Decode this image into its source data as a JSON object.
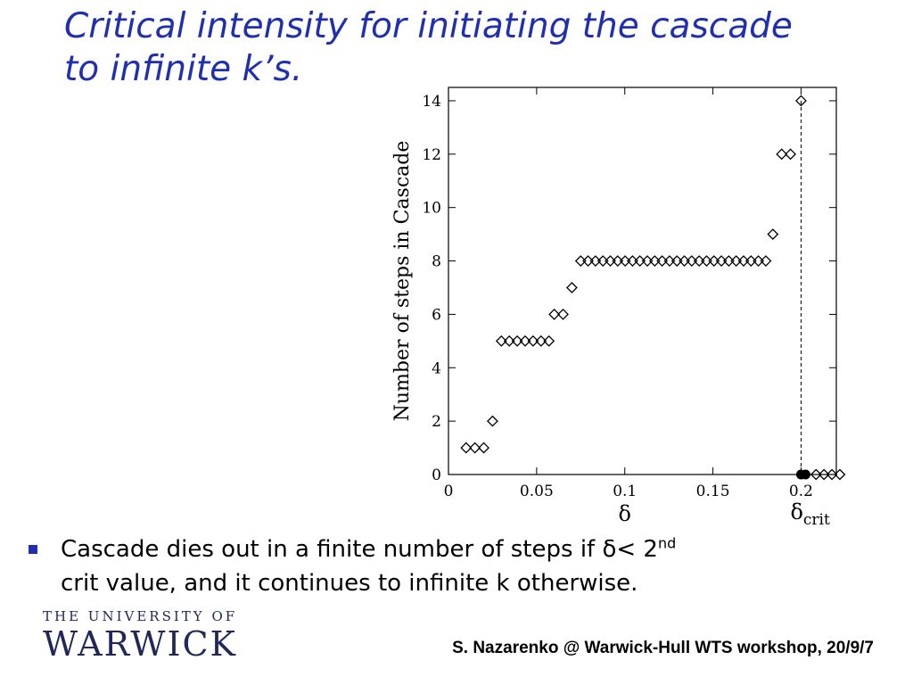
{
  "slide": {
    "title_line1": "Critical intensity for initiating the cascade",
    "title_line2": "to infinite k’s.",
    "bullet_main": "Cascade dies out in a finite number of steps if δ< 2",
    "bullet_sup": "nd",
    "bullet_line2": "crit value, and it continues to infinite k otherwise.",
    "logo_top": "THE UNIVERSITY OF",
    "logo_main": "WARWICK",
    "footer": "S. Nazarenko @ Warwick-Hull WTS workshop, 20/9/7"
  },
  "colors": {
    "title": "#1f2fb0",
    "bullet": "#1f2fb0",
    "logo": "#20285a",
    "axes": "#000000"
  },
  "chart_data": {
    "type": "scatter",
    "xlabel": "δ",
    "ylabel": "Number of steps in Cascade",
    "xlim": [
      0,
      0.22
    ],
    "ylim": [
      0,
      14.5
    ],
    "xticks": [
      0,
      0.05,
      0.1,
      0.15,
      0.2
    ],
    "xtick_labels": [
      "0",
      "0.05",
      "0.1",
      "0.15",
      "0.2"
    ],
    "yticks": [
      0,
      2,
      4,
      6,
      8,
      10,
      12,
      14
    ],
    "ytick_labels": [
      "0",
      "2",
      "4",
      "6",
      "8",
      "10",
      "12",
      "14"
    ],
    "critical_line": {
      "x": 0.2,
      "label": "δcrit"
    },
    "series": [
      {
        "marker": "diamond-open",
        "x": [
          0.01,
          0.015,
          0.02,
          0.025,
          0.03,
          0.0345,
          0.039,
          0.0435,
          0.048,
          0.0525,
          0.057,
          0.06,
          0.065,
          0.07,
          0.075,
          0.0792,
          0.0834,
          0.0876,
          0.0918,
          0.096,
          0.1002,
          0.1044,
          0.1086,
          0.1128,
          0.117,
          0.1212,
          0.1254,
          0.1296,
          0.1338,
          0.138,
          0.1422,
          0.1464,
          0.1506,
          0.1548,
          0.159,
          0.1632,
          0.1674,
          0.1716,
          0.1758,
          0.18,
          0.184,
          0.189,
          0.194,
          0.2,
          0.2085,
          0.213,
          0.2175,
          0.222
        ],
        "y": [
          1,
          1,
          1,
          2,
          5,
          5,
          5,
          5,
          5,
          5,
          5,
          6,
          6,
          7,
          8,
          8,
          8,
          8,
          8,
          8,
          8,
          8,
          8,
          8,
          8,
          8,
          8,
          8,
          8,
          8,
          8,
          8,
          8,
          8,
          8,
          8,
          8,
          8,
          8,
          8,
          9,
          12,
          12,
          14,
          0,
          0,
          0,
          0
        ]
      },
      {
        "marker": "circle-filled",
        "x": [
          0.2,
          0.2025
        ],
        "y": [
          0,
          0
        ]
      }
    ]
  }
}
